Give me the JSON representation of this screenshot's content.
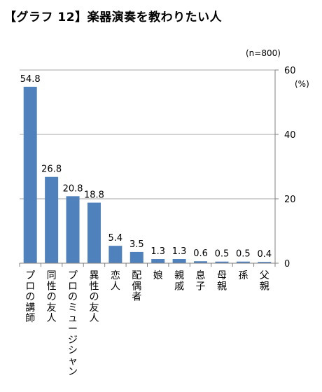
{
  "chart_data": {
    "type": "bar",
    "title": "【グラフ 12】楽器演奏を教わりたい人",
    "sample_note": "(n=800)",
    "unit_label": "(%)",
    "categories": [
      "プロの講師",
      "同性の友人",
      "プロのミュージシャン",
      "異性の友人",
      "恋人",
      "配偶者",
      "娘",
      "親戚",
      "息子",
      "母親",
      "孫",
      "父親"
    ],
    "values": [
      54.8,
      26.8,
      20.8,
      18.8,
      5.4,
      3.5,
      1.3,
      1.3,
      0.6,
      0.5,
      0.5,
      0.4
    ],
    "value_labels": [
      "54.8",
      "26.8",
      "20.8",
      "18.8",
      "5.4",
      "3.5",
      "1.3",
      "1.3",
      "0.6",
      "0.5",
      "0.5",
      "0.4"
    ],
    "ylim": [
      0,
      60
    ],
    "yticks": [
      0,
      20,
      40,
      60
    ],
    "y_axis_side": "right",
    "grid": true,
    "bar_color": "#4F81BD",
    "grid_color": "#A6A6A6",
    "axis_color": "#808080"
  }
}
